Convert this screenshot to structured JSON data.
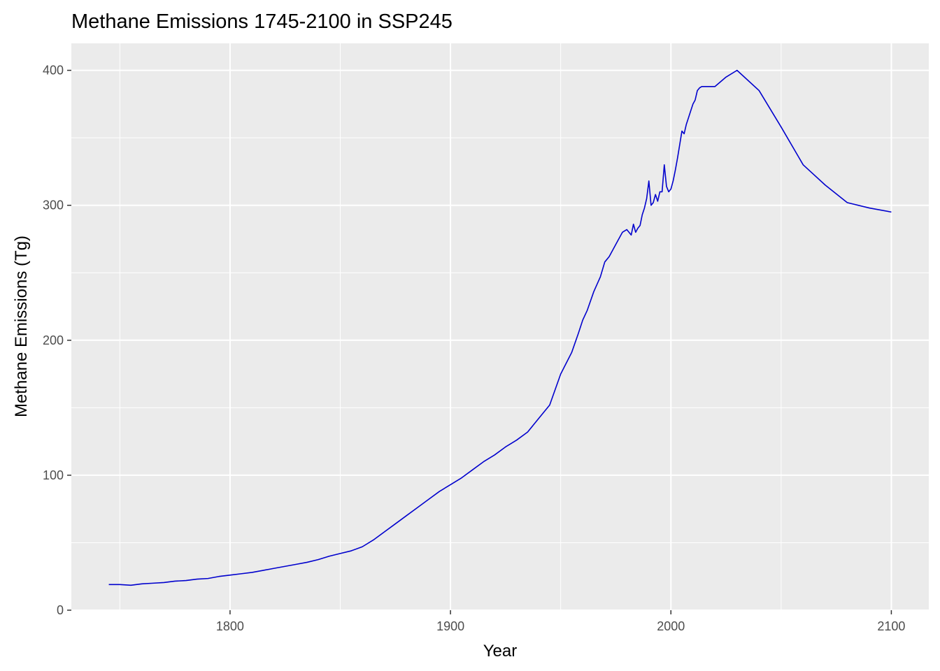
{
  "chart_data": {
    "type": "line",
    "title": "Methane Emissions 1745-2100 in SSP245",
    "xlabel": "Year",
    "ylabel": "Methane Emissions (Tg)",
    "xlim": [
      1728,
      2117
    ],
    "ylim": [
      0,
      420
    ],
    "x_ticks": [
      1800,
      1900,
      2000,
      2100
    ],
    "y_ticks": [
      0,
      100,
      200,
      300,
      400
    ],
    "x_tick_labels": [
      "1800",
      "1900",
      "2000",
      "2100"
    ],
    "y_tick_labels": [
      "0",
      "100",
      "200",
      "300",
      "400"
    ],
    "grid": true,
    "legend": "none",
    "colors": {
      "line": "#0000cd",
      "panel": "#ebebeb",
      "grid": "#ffffff"
    },
    "series": [
      {
        "x": [
          1745,
          1750,
          1755,
          1760,
          1765,
          1770,
          1775,
          1780,
          1785,
          1790,
          1795,
          1800,
          1805,
          1810,
          1815,
          1820,
          1825,
          1830,
          1835,
          1840,
          1845,
          1850,
          1855,
          1860,
          1865,
          1870,
          1875,
          1880,
          1885,
          1890,
          1895,
          1900,
          1905,
          1910,
          1915,
          1920,
          1925,
          1930,
          1935,
          1940,
          1945,
          1950,
          1955,
          1958,
          1960,
          1962,
          1965,
          1968,
          1970,
          1972,
          1974,
          1976,
          1978,
          1980,
          1982,
          1983,
          1984,
          1985,
          1986,
          1987,
          1988,
          1989,
          1990,
          1991,
          1992,
          1993,
          1994,
          1995,
          1996,
          1997,
          1998,
          1999,
          2000,
          2001,
          2002,
          2003,
          2004,
          2005,
          2006,
          2007,
          2008,
          2009,
          2010,
          2011,
          2012,
          2013,
          2014,
          2015,
          2020,
          2025,
          2030,
          2040,
          2050,
          2060,
          2070,
          2080,
          2090,
          2100
        ],
        "y": [
          19,
          19,
          18.5,
          19.5,
          20,
          20.5,
          21.5,
          22,
          23,
          23.5,
          25,
          26,
          27,
          28,
          29.5,
          31,
          32.5,
          34,
          35.5,
          37.5,
          40,
          42,
          44,
          47,
          52,
          58,
          64,
          70,
          76,
          82,
          88,
          93,
          98,
          104,
          110,
          115,
          121,
          126,
          132,
          142,
          152,
          175,
          191,
          205,
          215,
          222,
          236,
          247,
          258,
          262,
          268,
          274,
          280,
          282,
          278,
          286,
          280,
          283,
          285,
          293,
          298,
          305,
          318,
          300,
          302,
          308,
          303,
          310,
          310,
          330,
          314,
          310,
          312,
          318,
          326,
          335,
          345,
          355,
          353,
          360,
          365,
          370,
          375,
          378,
          385,
          387,
          388,
          388,
          388,
          395,
          400,
          385,
          358,
          330,
          315,
          302,
          298,
          295
        ]
      }
    ]
  }
}
